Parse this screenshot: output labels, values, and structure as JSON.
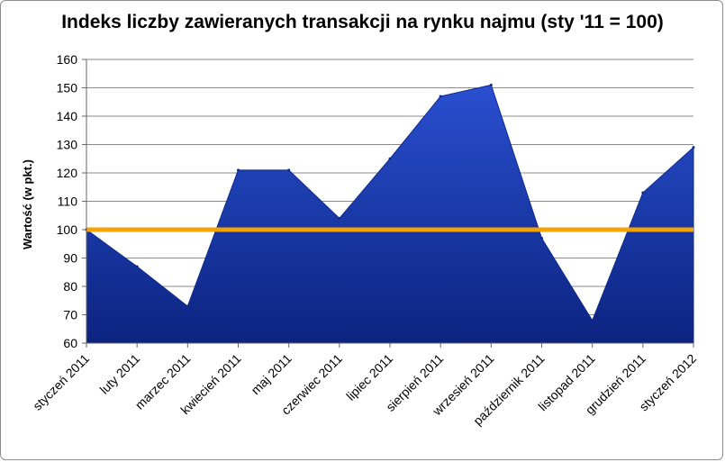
{
  "chart_data": {
    "type": "area",
    "title": "Indeks liczby zawieranych transakcji na rynku najmu (sty '11 = 100)",
    "ylabel": "Wartość (w pkt.)",
    "xlabel": "",
    "categories": [
      "styczeń 2011",
      "luty 2011",
      "marzec 2011",
      "kwiecień 2011",
      "maj 2011",
      "czerwiec 2011",
      "lipiec 2011",
      "sierpień 2011",
      "wrzesień 2011",
      "październik 2011",
      "listopad 2011",
      "grudzień 2011",
      "styczeń 2012"
    ],
    "series": [
      {
        "values": [
          100,
          87,
          73,
          121,
          121,
          104,
          125,
          147,
          151,
          97,
          68,
          113,
          129
        ],
        "color": "#1a3aa8"
      }
    ],
    "reference_line": {
      "value": 100,
      "color": "#f5a300"
    },
    "yticks": [
      "60",
      "70",
      "80",
      "90",
      "100",
      "110",
      "120",
      "130",
      "140",
      "150",
      "160"
    ],
    "ylim": [
      60,
      160
    ],
    "grid": true,
    "legend": "none"
  }
}
